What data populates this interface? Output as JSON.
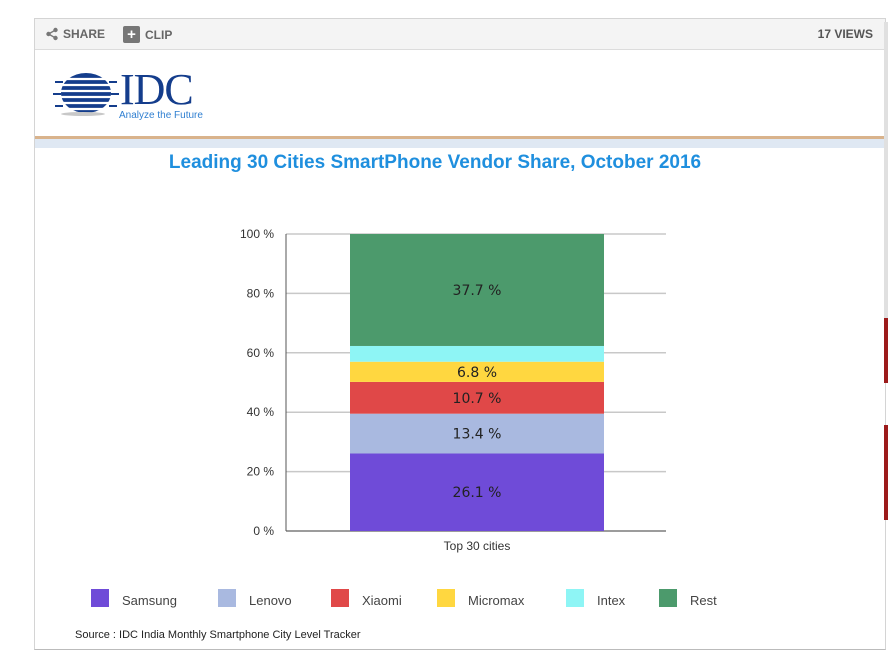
{
  "toolbar": {
    "share_label": "SHARE",
    "clip_label": "CLIP",
    "views_label": "17 VIEWS"
  },
  "logo": {
    "text": "IDC",
    "tagline": "Analyze the Future"
  },
  "chart_data": {
    "type": "bar",
    "stacked": true,
    "title": "Leading 30 Cities SmartPhone Vendor Share, October 2016",
    "xlabel": "",
    "ylabel": "",
    "categories": [
      "Top 30 cities"
    ],
    "ylim": [
      0,
      100
    ],
    "yticks": [
      "0 %",
      "20 %",
      "40 %",
      "60 %",
      "80 %",
      "100 %"
    ],
    "grid": true,
    "legend_position": "bottom",
    "series": [
      {
        "name": "Samsung",
        "values": [
          26.1
        ],
        "color": "#6f4bd8",
        "label": "26.1 %"
      },
      {
        "name": "Lenovo",
        "values": [
          13.4
        ],
        "color": "#a9b9e0",
        "label": "13.4 %"
      },
      {
        "name": "Xiaomi",
        "values": [
          10.7
        ],
        "color": "#e04848",
        "label": "10.7 %"
      },
      {
        "name": "Micromax",
        "values": [
          6.8
        ],
        "color": "#ffd740",
        "label": "6.8 %"
      },
      {
        "name": "Intex",
        "values": [
          5.3
        ],
        "color": "#8ef5f5",
        "label": ""
      },
      {
        "name": "Rest",
        "values": [
          37.7
        ],
        "color": "#4c9a6c",
        "label": "37.7 %"
      }
    ]
  },
  "source_note": "Source : IDC India Monthly Smartphone City Level Tracker"
}
